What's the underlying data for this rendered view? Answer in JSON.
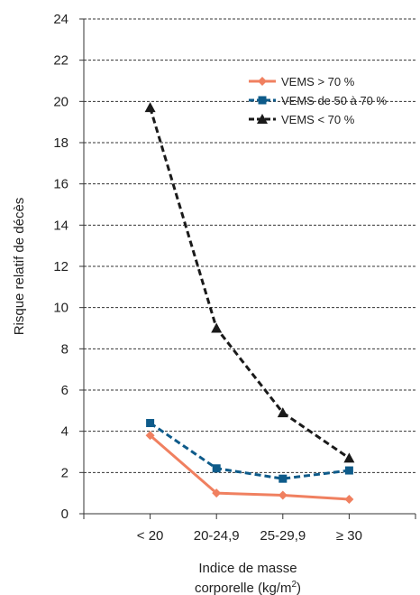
{
  "chart_data": {
    "type": "line",
    "categories": [
      "< 20",
      "20-24,9",
      "25-29,9",
      "≥ 30"
    ],
    "series": [
      {
        "name": "VEMS > 70 %",
        "values": [
          3.8,
          1.0,
          0.9,
          0.7
        ],
        "color": "#f08060",
        "marker": "diamond",
        "dash": "solid"
      },
      {
        "name": "VEMS de 50 à 70 %",
        "values": [
          4.4,
          2.2,
          1.7,
          2.1
        ],
        "color": "#0e5b8a",
        "marker": "square",
        "dash": "dashed"
      },
      {
        "name": "VEMS < 70 %",
        "values": [
          19.7,
          9.0,
          4.9,
          2.7
        ],
        "color": "#1a1a1a",
        "marker": "triangle",
        "dash": "dashed"
      }
    ],
    "ylabel": "Risque relatif de décès",
    "xlabel_line1": "Indice de masse",
    "xlabel_line2": "corporelle (kg/m",
    "xlabel_sup": "2",
    "xlabel_end": ")",
    "ylim": [
      0,
      24
    ],
    "yticks": [
      "0",
      "2",
      "4",
      "6",
      "8",
      "10",
      "12",
      "14",
      "16",
      "18",
      "20",
      "22",
      "24"
    ],
    "grid": true,
    "legend_position": "top-right"
  }
}
